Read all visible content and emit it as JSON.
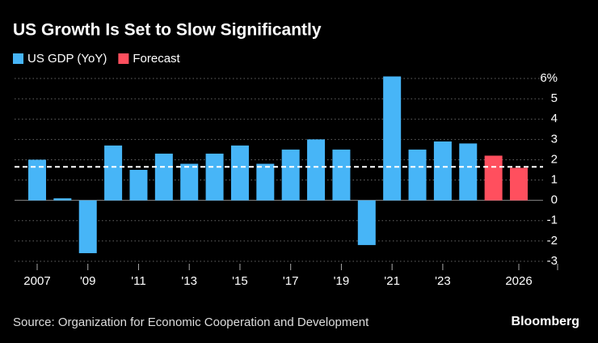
{
  "chart_data": {
    "type": "bar",
    "title": "US Growth Is Set to Slow Significantly",
    "source": "Source: Organization for Economic Cooperation and Development",
    "brand": "Bloomberg",
    "categories": [
      "2007",
      null,
      "'09",
      null,
      "'11",
      null,
      "'13",
      null,
      "'15",
      null,
      "'17",
      null,
      "'19",
      null,
      "'21",
      null,
      "'23",
      null,
      null,
      "2026"
    ],
    "series": [
      {
        "name": "US GDP (YoY)",
        "color": "#47b5f7",
        "values": [
          2.0,
          0.1,
          -2.6,
          2.7,
          1.5,
          2.3,
          1.8,
          2.3,
          2.7,
          1.8,
          2.5,
          3.0,
          2.5,
          -2.2,
          6.1,
          2.5,
          2.9,
          2.8,
          null,
          null
        ]
      },
      {
        "name": "Forecast",
        "color": "#ff4f5e",
        "values": [
          null,
          null,
          null,
          null,
          null,
          null,
          null,
          null,
          null,
          null,
          null,
          null,
          null,
          null,
          null,
          null,
          null,
          null,
          2.2,
          1.6
        ]
      }
    ],
    "reference_line": 1.65,
    "ylim": [
      -3,
      6
    ],
    "yticks": [
      -3,
      -2,
      -1,
      0,
      1,
      2,
      3,
      4,
      5,
      {
        "value": 6,
        "label": "6%"
      }
    ],
    "grid": true
  }
}
